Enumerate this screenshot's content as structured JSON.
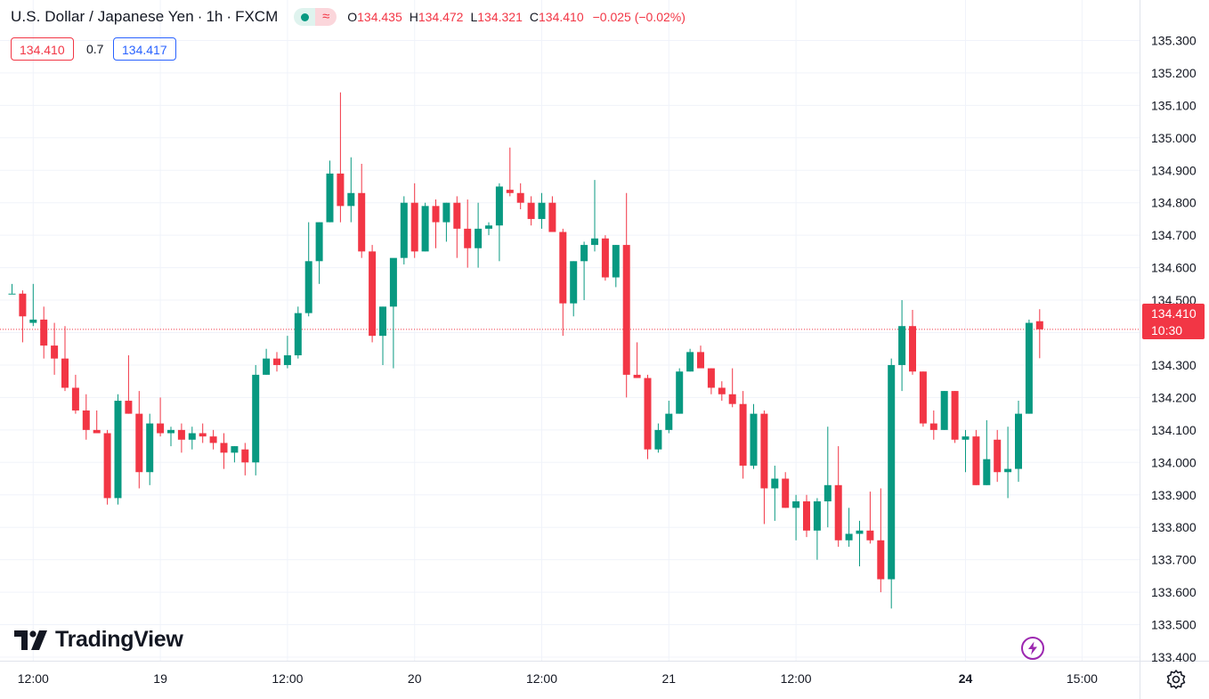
{
  "header": {
    "symbol_title": "U.S. Dollar / Japanese Yen",
    "interval": "1h",
    "exchange": "FXCM",
    "separator": "·",
    "wave_glyph": "≈",
    "open_label": "O",
    "open_value": "134.435",
    "high_label": "H",
    "high_value": "134.472",
    "low_label": "L",
    "low_value": "134.321",
    "close_label": "C",
    "close_value": "134.410",
    "change": "−0.025 (−0.02%)",
    "bid": "134.410",
    "spread": "0.7",
    "ask": "134.417"
  },
  "branding": {
    "logo_text": "TradingView"
  },
  "last_price": {
    "price": "134.410",
    "countdown": "10:30"
  },
  "colors": {
    "up": "#089981",
    "down": "#f23645",
    "grid": "#f0f3fa",
    "text": "#131722",
    "ask": "#2962ff"
  },
  "icons": {
    "settings": "gear-icon",
    "replay": "lightning-icon",
    "market_status": "market-open-dot-icon"
  },
  "chart_data": {
    "type": "candlestick",
    "symbol": "USDJPY",
    "interval": "1h",
    "y_ticks": [
      "135.300",
      "135.200",
      "135.100",
      "135.000",
      "134.900",
      "134.800",
      "134.700",
      "134.600",
      "134.500",
      "134.400",
      "134.300",
      "134.200",
      "134.100",
      "134.000",
      "133.900",
      "133.800",
      "133.700",
      "133.600",
      "133.500",
      "133.400"
    ],
    "ylim": [
      133.39,
      135.33
    ],
    "x_ticks": [
      {
        "label": "12:00",
        "bar": 2
      },
      {
        "label": "19",
        "bar": 14
      },
      {
        "label": "12:00",
        "bar": 26
      },
      {
        "label": "20",
        "bar": 38
      },
      {
        "label": "12:00",
        "bar": 50
      },
      {
        "label": "21",
        "bar": 62
      },
      {
        "label": "12:00",
        "bar": 74
      },
      {
        "label": "24",
        "bar": 90
      },
      {
        "label": "15:00",
        "bar": 101
      }
    ],
    "last_price": 134.41,
    "candles": [
      {
        "o": 134.52,
        "h": 134.55,
        "l": 134.52,
        "c": 134.52
      },
      {
        "o": 134.52,
        "h": 134.53,
        "l": 134.37,
        "c": 134.45
      },
      {
        "o": 134.43,
        "h": 134.55,
        "l": 134.42,
        "c": 134.44
      },
      {
        "o": 134.44,
        "h": 134.48,
        "l": 134.32,
        "c": 134.36
      },
      {
        "o": 134.36,
        "h": 134.43,
        "l": 134.27,
        "c": 134.32
      },
      {
        "o": 134.32,
        "h": 134.42,
        "l": 134.22,
        "c": 134.23
      },
      {
        "o": 134.23,
        "h": 134.27,
        "l": 134.15,
        "c": 134.16
      },
      {
        "o": 134.16,
        "h": 134.21,
        "l": 134.07,
        "c": 134.1
      },
      {
        "o": 134.1,
        "h": 134.16,
        "l": 134.09,
        "c": 134.09
      },
      {
        "o": 134.09,
        "h": 134.1,
        "l": 133.87,
        "c": 133.89
      },
      {
        "o": 133.89,
        "h": 134.21,
        "l": 133.87,
        "c": 134.19
      },
      {
        "o": 134.19,
        "h": 134.33,
        "l": 134.15,
        "c": 134.15
      },
      {
        "o": 134.15,
        "h": 134.22,
        "l": 133.92,
        "c": 133.97
      },
      {
        "o": 133.97,
        "h": 134.15,
        "l": 133.93,
        "c": 134.12
      },
      {
        "o": 134.12,
        "h": 134.2,
        "l": 134.08,
        "c": 134.09
      },
      {
        "o": 134.09,
        "h": 134.11,
        "l": 134.05,
        "c": 134.1
      },
      {
        "o": 134.1,
        "h": 134.12,
        "l": 134.03,
        "c": 134.07
      },
      {
        "o": 134.07,
        "h": 134.11,
        "l": 134.04,
        "c": 134.09
      },
      {
        "o": 134.09,
        "h": 134.12,
        "l": 134.06,
        "c": 134.08
      },
      {
        "o": 134.08,
        "h": 134.1,
        "l": 134.04,
        "c": 134.06
      },
      {
        "o": 134.06,
        "h": 134.09,
        "l": 133.98,
        "c": 134.03
      },
      {
        "o": 134.03,
        "h": 134.05,
        "l": 134.0,
        "c": 134.05
      },
      {
        "o": 134.04,
        "h": 134.06,
        "l": 133.96,
        "c": 134.0
      },
      {
        "o": 134.0,
        "h": 134.3,
        "l": 133.96,
        "c": 134.27
      },
      {
        "o": 134.27,
        "h": 134.35,
        "l": 134.27,
        "c": 134.32
      },
      {
        "o": 134.32,
        "h": 134.34,
        "l": 134.28,
        "c": 134.3
      },
      {
        "o": 134.3,
        "h": 134.39,
        "l": 134.29,
        "c": 134.33
      },
      {
        "o": 134.33,
        "h": 134.48,
        "l": 134.32,
        "c": 134.46
      },
      {
        "o": 134.46,
        "h": 134.74,
        "l": 134.45,
        "c": 134.62
      },
      {
        "o": 134.62,
        "h": 134.74,
        "l": 134.55,
        "c": 134.74
      },
      {
        "o": 134.74,
        "h": 134.93,
        "l": 134.74,
        "c": 134.89
      },
      {
        "o": 134.89,
        "h": 135.14,
        "l": 134.74,
        "c": 134.79
      },
      {
        "o": 134.79,
        "h": 134.94,
        "l": 134.74,
        "c": 134.83
      },
      {
        "o": 134.83,
        "h": 134.92,
        "l": 134.63,
        "c": 134.65
      },
      {
        "o": 134.65,
        "h": 134.67,
        "l": 134.37,
        "c": 134.39
      },
      {
        "o": 134.39,
        "h": 134.48,
        "l": 134.3,
        "c": 134.48
      },
      {
        "o": 134.48,
        "h": 134.62,
        "l": 134.29,
        "c": 134.63
      },
      {
        "o": 134.63,
        "h": 134.82,
        "l": 134.61,
        "c": 134.8
      },
      {
        "o": 134.8,
        "h": 134.86,
        "l": 134.63,
        "c": 134.65
      },
      {
        "o": 134.65,
        "h": 134.8,
        "l": 134.65,
        "c": 134.79
      },
      {
        "o": 134.79,
        "h": 134.81,
        "l": 134.66,
        "c": 134.74
      },
      {
        "o": 134.74,
        "h": 134.8,
        "l": 134.68,
        "c": 134.8
      },
      {
        "o": 134.8,
        "h": 134.82,
        "l": 134.63,
        "c": 134.72
      },
      {
        "o": 134.72,
        "h": 134.81,
        "l": 134.6,
        "c": 134.66
      },
      {
        "o": 134.66,
        "h": 134.8,
        "l": 134.6,
        "c": 134.72
      },
      {
        "o": 134.72,
        "h": 134.74,
        "l": 134.7,
        "c": 134.73
      },
      {
        "o": 134.73,
        "h": 134.86,
        "l": 134.62,
        "c": 134.85
      },
      {
        "o": 134.84,
        "h": 134.97,
        "l": 134.82,
        "c": 134.83
      },
      {
        "o": 134.83,
        "h": 134.86,
        "l": 134.78,
        "c": 134.8
      },
      {
        "o": 134.8,
        "h": 134.82,
        "l": 134.73,
        "c": 134.75
      },
      {
        "o": 134.75,
        "h": 134.83,
        "l": 134.72,
        "c": 134.8
      },
      {
        "o": 134.8,
        "h": 134.82,
        "l": 134.71,
        "c": 134.71
      },
      {
        "o": 134.71,
        "h": 134.72,
        "l": 134.39,
        "c": 134.49
      },
      {
        "o": 134.49,
        "h": 134.62,
        "l": 134.45,
        "c": 134.62
      },
      {
        "o": 134.62,
        "h": 134.68,
        "l": 134.5,
        "c": 134.67
      },
      {
        "o": 134.67,
        "h": 134.87,
        "l": 134.65,
        "c": 134.69
      },
      {
        "o": 134.69,
        "h": 134.7,
        "l": 134.56,
        "c": 134.57
      },
      {
        "o": 134.57,
        "h": 134.67,
        "l": 134.54,
        "c": 134.67
      },
      {
        "o": 134.67,
        "h": 134.83,
        "l": 134.2,
        "c": 134.27
      },
      {
        "o": 134.27,
        "h": 134.37,
        "l": 134.26,
        "c": 134.26
      },
      {
        "o": 134.26,
        "h": 134.27,
        "l": 134.01,
        "c": 134.04
      },
      {
        "o": 134.04,
        "h": 134.12,
        "l": 134.03,
        "c": 134.1
      },
      {
        "o": 134.1,
        "h": 134.19,
        "l": 134.09,
        "c": 134.15
      },
      {
        "o": 134.15,
        "h": 134.29,
        "l": 134.15,
        "c": 134.28
      },
      {
        "o": 134.28,
        "h": 134.35,
        "l": 134.28,
        "c": 134.34
      },
      {
        "o": 134.34,
        "h": 134.36,
        "l": 134.3,
        "c": 134.29
      },
      {
        "o": 134.29,
        "h": 134.29,
        "l": 134.21,
        "c": 134.23
      },
      {
        "o": 134.23,
        "h": 134.25,
        "l": 134.19,
        "c": 134.21
      },
      {
        "o": 134.21,
        "h": 134.29,
        "l": 134.17,
        "c": 134.18
      },
      {
        "o": 134.18,
        "h": 134.22,
        "l": 133.95,
        "c": 133.99
      },
      {
        "o": 133.99,
        "h": 134.18,
        "l": 133.98,
        "c": 134.15
      },
      {
        "o": 134.15,
        "h": 134.16,
        "l": 133.81,
        "c": 133.92
      },
      {
        "o": 133.92,
        "h": 133.99,
        "l": 133.82,
        "c": 133.95
      },
      {
        "o": 133.95,
        "h": 133.97,
        "l": 133.86,
        "c": 133.86
      },
      {
        "o": 133.86,
        "h": 133.9,
        "l": 133.76,
        "c": 133.88
      },
      {
        "o": 133.88,
        "h": 133.9,
        "l": 133.77,
        "c": 133.79
      },
      {
        "o": 133.79,
        "h": 133.89,
        "l": 133.7,
        "c": 133.88
      },
      {
        "o": 133.88,
        "h": 134.11,
        "l": 133.8,
        "c": 133.93
      },
      {
        "o": 133.93,
        "h": 134.05,
        "l": 133.74,
        "c": 133.76
      },
      {
        "o": 133.76,
        "h": 133.86,
        "l": 133.74,
        "c": 133.78
      },
      {
        "o": 133.78,
        "h": 133.82,
        "l": 133.68,
        "c": 133.79
      },
      {
        "o": 133.79,
        "h": 133.91,
        "l": 133.75,
        "c": 133.76
      },
      {
        "o": 133.76,
        "h": 133.92,
        "l": 133.6,
        "c": 133.64
      },
      {
        "o": 133.64,
        "h": 134.32,
        "l": 133.55,
        "c": 134.3
      },
      {
        "o": 134.3,
        "h": 134.5,
        "l": 134.22,
        "c": 134.42
      },
      {
        "o": 134.42,
        "h": 134.47,
        "l": 134.27,
        "c": 134.28
      },
      {
        "o": 134.28,
        "h": 134.28,
        "l": 134.11,
        "c": 134.12
      },
      {
        "o": 134.12,
        "h": 134.16,
        "l": 134.07,
        "c": 134.1
      },
      {
        "o": 134.1,
        "h": 134.22,
        "l": 134.1,
        "c": 134.22
      },
      {
        "o": 134.22,
        "h": 134.22,
        "l": 134.06,
        "c": 134.07
      },
      {
        "o": 134.07,
        "h": 134.1,
        "l": 133.97,
        "c": 134.08
      },
      {
        "o": 134.08,
        "h": 134.1,
        "l": 133.93,
        "c": 133.93
      },
      {
        "o": 133.93,
        "h": 134.13,
        "l": 133.93,
        "c": 134.01
      },
      {
        "o": 134.07,
        "h": 134.1,
        "l": 133.94,
        "c": 133.97
      },
      {
        "o": 133.97,
        "h": 134.11,
        "l": 133.89,
        "c": 133.98
      },
      {
        "o": 133.98,
        "h": 134.19,
        "l": 133.94,
        "c": 134.15
      },
      {
        "o": 134.15,
        "h": 134.44,
        "l": 134.15,
        "c": 134.43
      },
      {
        "o": 134.435,
        "h": 134.472,
        "l": 134.321,
        "c": 134.41
      }
    ]
  }
}
